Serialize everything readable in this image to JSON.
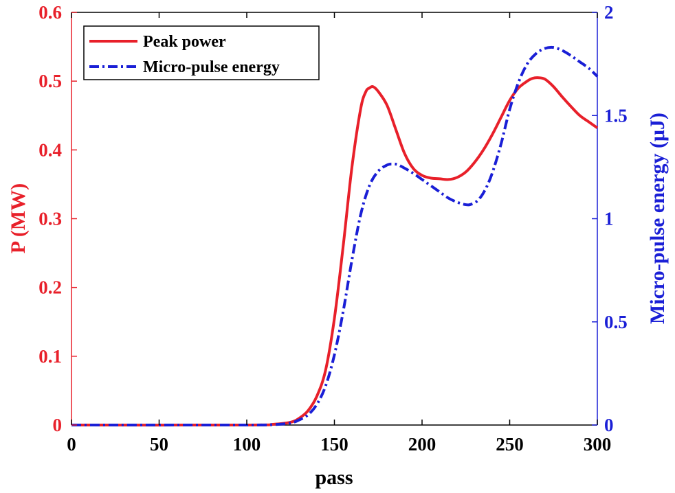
{
  "chart_data": {
    "type": "line",
    "xlabel": "pass",
    "ylabel_left": "P (MW)",
    "ylabel_right": "Micro-pulse energy (μJ)",
    "xlim": [
      0,
      300
    ],
    "ylim_left": [
      0,
      0.6
    ],
    "ylim_right": [
      0,
      2
    ],
    "x_ticks": [
      0,
      50,
      100,
      150,
      200,
      250,
      300
    ],
    "y_ticks_left": [
      0,
      0.1,
      0.2,
      0.3,
      0.4,
      0.5,
      0.6
    ],
    "y_ticks_right": [
      0,
      0.5,
      1,
      1.5,
      2
    ],
    "x_tick_labels": [
      "0",
      "50",
      "100",
      "150",
      "200",
      "250",
      "300"
    ],
    "y_tick_labels_left": [
      "0",
      "0.1",
      "0.2",
      "0.3",
      "0.4",
      "0.5",
      "0.6"
    ],
    "y_tick_labels_right": [
      "0",
      "0.5",
      "1",
      "1.5",
      "2"
    ],
    "legend_position": "top-left",
    "grid": false,
    "series": [
      {
        "name": "Peak power",
        "axis": "left",
        "color": "#e8202a",
        "style": "solid",
        "x": [
          0,
          100,
          115,
          125,
          130,
          135,
          140,
          145,
          150,
          155,
          160,
          165,
          168,
          170,
          172,
          175,
          180,
          185,
          190,
          195,
          200,
          205,
          210,
          215,
          220,
          225,
          230,
          235,
          240,
          245,
          250,
          255,
          260,
          263,
          266,
          270,
          275,
          280,
          285,
          290,
          295,
          300
        ],
        "values": [
          0,
          0,
          0.001,
          0.004,
          0.01,
          0.021,
          0.042,
          0.08,
          0.155,
          0.26,
          0.375,
          0.46,
          0.485,
          0.49,
          0.492,
          0.485,
          0.465,
          0.43,
          0.395,
          0.373,
          0.363,
          0.359,
          0.358,
          0.357,
          0.36,
          0.368,
          0.382,
          0.4,
          0.422,
          0.447,
          0.472,
          0.49,
          0.5,
          0.504,
          0.505,
          0.503,
          0.492,
          0.477,
          0.463,
          0.45,
          0.441,
          0.432
        ]
      },
      {
        "name": "Micro-pulse energy",
        "axis": "right",
        "color": "#1a1fd6",
        "style": "dashdot",
        "x": [
          0,
          100,
          115,
          125,
          130,
          135,
          140,
          145,
          150,
          155,
          160,
          165,
          170,
          175,
          180,
          183,
          186,
          190,
          195,
          200,
          205,
          210,
          215,
          220,
          225,
          228,
          232,
          236,
          240,
          245,
          250,
          255,
          260,
          265,
          270,
          275,
          280,
          285,
          290,
          295,
          300
        ],
        "values": [
          0,
          0,
          0.002,
          0.01,
          0.025,
          0.05,
          0.1,
          0.19,
          0.34,
          0.55,
          0.8,
          1.02,
          1.16,
          1.23,
          1.26,
          1.265,
          1.262,
          1.245,
          1.22,
          1.19,
          1.16,
          1.13,
          1.1,
          1.08,
          1.068,
          1.07,
          1.09,
          1.14,
          1.22,
          1.36,
          1.53,
          1.66,
          1.75,
          1.8,
          1.825,
          1.83,
          1.815,
          1.79,
          1.76,
          1.73,
          1.69
        ]
      }
    ]
  }
}
